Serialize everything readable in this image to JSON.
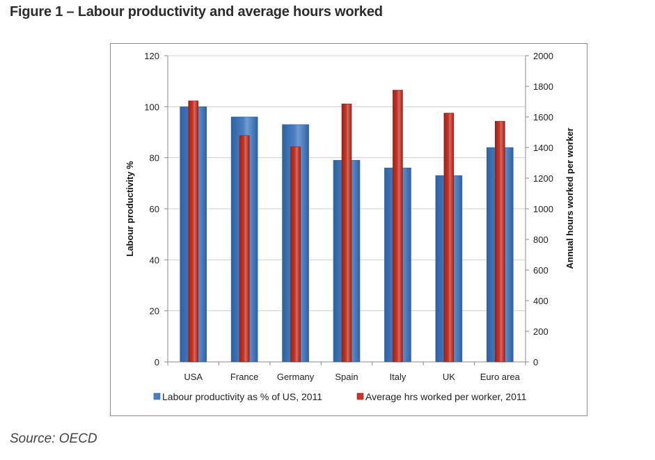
{
  "figure_title": "Figure 1 – Labour productivity and average hours worked",
  "source": "Source: OECD",
  "colors": {
    "bar_blue": "#4a7fc1",
    "bar_blue_dark": "#2e5f9e",
    "bar_red": "#c0392b",
    "bar_red_dark": "#8e1f17",
    "grid": "#d0d0d0"
  },
  "chart_data": {
    "type": "bar",
    "categories": [
      "USA",
      "France",
      "Germany",
      "Spain",
      "Italy",
      "UK",
      "Euro area"
    ],
    "series": [
      {
        "name": "Labour productivity as % of US, 2011",
        "axis": "left",
        "values": [
          100,
          96,
          93,
          79,
          76,
          73,
          84
        ]
      },
      {
        "name": "Average hrs worked per worker, 2011",
        "axis": "right",
        "values": [
          1705,
          1478,
          1405,
          1685,
          1775,
          1625,
          1572
        ]
      }
    ],
    "ylabel": "Labour productivity %",
    "y2label": "Annual hours worked per worker",
    "ylim": [
      0,
      120
    ],
    "y2lim": [
      0,
      2000
    ],
    "yticks": [
      "0",
      "20",
      "40",
      "60",
      "80",
      "100",
      "120"
    ],
    "y2ticks": [
      "0",
      "200",
      "400",
      "600",
      "800",
      "1000",
      "1200",
      "1400",
      "1600",
      "1800",
      "2000"
    ],
    "grid": true,
    "legend_position": "bottom"
  }
}
